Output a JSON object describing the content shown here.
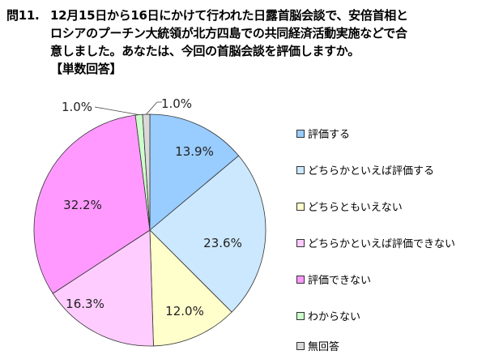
{
  "question": {
    "number": "問11.",
    "lines": [
      "12月15日から16日にかけて行われた日露首脳会談で、安倍首相と",
      "ロシアのプーチン大統領が北方四島での共同経済活動実施などで合",
      "意しました。あなたは、今回の首脳会談を評価しますか。"
    ],
    "note": "【単数回答】"
  },
  "chart_data": {
    "type": "pie",
    "start": "top",
    "direction": "clockwise",
    "legend_position": "right",
    "categories": [
      "評価する",
      "どちらかといえば評価する",
      "どちらともいえない",
      "どちらかといえば評価できない",
      "評価できない",
      "わからない",
      "無回答"
    ],
    "values": [
      13.9,
      23.6,
      12.0,
      16.3,
      32.2,
      1.0,
      1.0
    ],
    "labels": [
      "13.9%",
      "23.6%",
      "12.0%",
      "16.3%",
      "32.2%",
      "1.0%",
      "1.0%"
    ],
    "colors": [
      "#99ccff",
      "#cce8ff",
      "#ffffcc",
      "#ffccff",
      "#ff99ff",
      "#ccffcc",
      "#d9d9d9"
    ]
  }
}
